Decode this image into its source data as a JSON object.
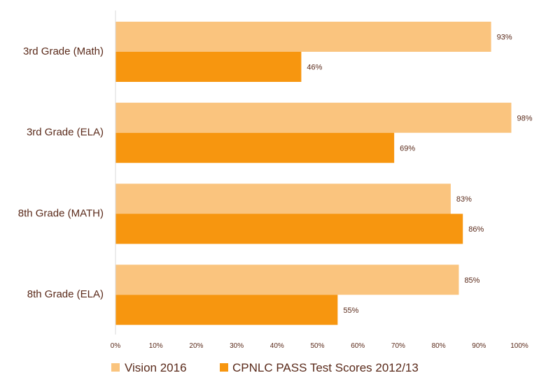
{
  "chart_data": {
    "type": "bar",
    "orientation": "horizontal",
    "categories": [
      "3rd Grade (Math)",
      "3rd Grade (ELA)",
      "8th Grade (MATH)",
      "8th Grade (ELA)"
    ],
    "series": [
      {
        "name": "Vision 2016",
        "values": [
          93,
          98,
          83,
          85
        ],
        "labels": [
          "93%",
          "98%",
          "83%",
          "85%"
        ],
        "color": "#fac47e"
      },
      {
        "name": "CPNLC PASS Test Scores 2012/13",
        "values": [
          46,
          69,
          86,
          55
        ],
        "labels": [
          "46%",
          "69%",
          "86%",
          "55%"
        ],
        "color": "#f7960f"
      }
    ],
    "xlim": [
      0,
      100
    ],
    "xticks": [
      "0%",
      "10%",
      "20%",
      "30%",
      "40%",
      "50%",
      "60%",
      "70%",
      "80%",
      "90%",
      "100%"
    ],
    "grid": false,
    "legend_position": "bottom-left",
    "axis_color": "#d9d9d9",
    "text_color": "#5a2a1a"
  }
}
